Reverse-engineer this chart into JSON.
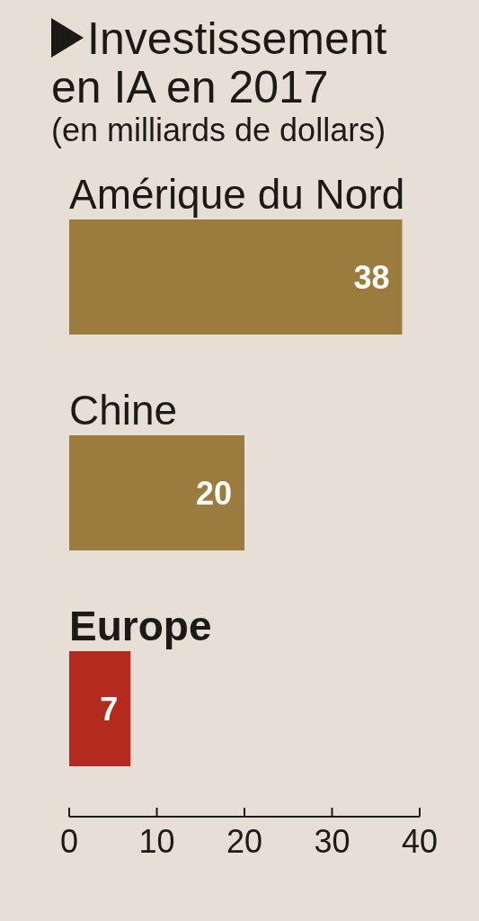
{
  "chart_data": {
    "type": "bar",
    "orientation": "horizontal",
    "title": "Investissement en IA en 2017",
    "subtitle": "(en milliards de dollars)",
    "categories": [
      "Amérique du Nord",
      "Chine",
      "Europe"
    ],
    "values": [
      38,
      20,
      7
    ],
    "colors": [
      "#9c7b3f",
      "#9c7b3f",
      "#b52a1f"
    ],
    "xlim": [
      0,
      40
    ],
    "xticks": [
      0,
      10,
      20,
      30,
      40
    ],
    "data_labels": true
  }
}
